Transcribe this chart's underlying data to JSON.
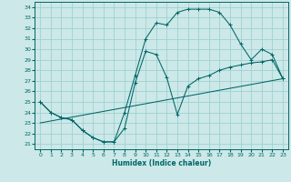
{
  "xlabel": "Humidex (Indice chaleur)",
  "bg_color": "#cce8e8",
  "grid_color": "#99cccc",
  "line_color": "#006666",
  "xlim": [
    -0.5,
    23.5
  ],
  "ylim": [
    20.5,
    34.5
  ],
  "xticks": [
    0,
    1,
    2,
    3,
    4,
    5,
    6,
    7,
    8,
    9,
    10,
    11,
    12,
    13,
    14,
    15,
    16,
    17,
    18,
    19,
    20,
    21,
    22,
    23
  ],
  "yticks": [
    21,
    22,
    23,
    24,
    25,
    26,
    27,
    28,
    29,
    30,
    31,
    32,
    33,
    34
  ],
  "line1_x": [
    0,
    1,
    2,
    3,
    4,
    5,
    6,
    7,
    8,
    9,
    10,
    11,
    12,
    13,
    14,
    15,
    16,
    17,
    18,
    19,
    20,
    21,
    22,
    23
  ],
  "line1_y": [
    25.0,
    24.0,
    23.5,
    23.3,
    22.3,
    21.6,
    21.2,
    21.2,
    24.0,
    27.5,
    31.0,
    32.5,
    32.3,
    33.5,
    33.8,
    33.8,
    33.8,
    33.5,
    32.3,
    30.5,
    29.0,
    30.0,
    29.5,
    27.2
  ],
  "line2_x": [
    0,
    1,
    2,
    3,
    4,
    5,
    6,
    7,
    8,
    9,
    10,
    11,
    12,
    13,
    14,
    15,
    16,
    17,
    18,
    19,
    20,
    21,
    22,
    23
  ],
  "line2_y": [
    25.0,
    24.0,
    23.5,
    23.3,
    22.3,
    21.6,
    21.2,
    21.2,
    22.5,
    26.8,
    29.8,
    29.5,
    27.3,
    23.8,
    26.5,
    27.2,
    27.5,
    28.0,
    28.3,
    28.5,
    28.7,
    28.8,
    29.0,
    27.2
  ],
  "line3_x": [
    0,
    23
  ],
  "line3_y": [
    23.0,
    27.2
  ]
}
